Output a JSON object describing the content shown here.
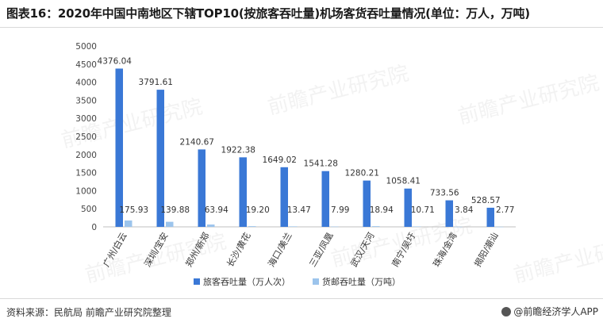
{
  "title": "图表16：2020年中国中南地区下辖TOP10(按旅客吞吐量)机场客货吞吐量情况(单位：万人，万吨)",
  "source": "资料来源：民航局 前瞻产业研究院整理",
  "brand": "@前瞻经济学人APP",
  "watermark": "前瞻产业研究院",
  "chart_data": {
    "type": "bar",
    "categories": [
      "广州/白云",
      "深圳/宝安",
      "郑州/新郑",
      "长沙/黄花",
      "海口/美兰",
      "三亚/凤凰",
      "武汉/天河",
      "南宁/吴圩",
      "珠海/金湾",
      "揭阳/潮汕"
    ],
    "series": [
      {
        "name": "旅客吞吐量（万人次）",
        "color": "#3a78d6",
        "values": [
          4376.04,
          3791.61,
          2140.67,
          1922.38,
          1649.02,
          1541.28,
          1280.21,
          1058.41,
          733.56,
          528.57
        ]
      },
      {
        "name": "货邮吞吐量（万吨）",
        "color": "#9cc4ec",
        "values": [
          175.93,
          139.88,
          63.94,
          19.2,
          13.47,
          7.99,
          18.94,
          10.71,
          3.84,
          2.77
        ]
      }
    ],
    "data_labels": [
      [
        "4376.04",
        "3791.61",
        "2140.67",
        "1922.38",
        "1649.02",
        "1541.28",
        "1280.21",
        "1058.41",
        "733.56",
        "528.57"
      ],
      [
        "175.93",
        "139.88",
        "63.94",
        "19.20",
        "13.47",
        "7.99",
        "18.94",
        "10.71",
        "3.84",
        "2.77"
      ]
    ],
    "ylim": [
      0,
      5000
    ],
    "yticks": [
      0,
      500,
      1000,
      1500,
      2000,
      2500,
      3000,
      3500,
      4000,
      4500,
      5000
    ],
    "grid": false,
    "legend_position": "bottom"
  }
}
